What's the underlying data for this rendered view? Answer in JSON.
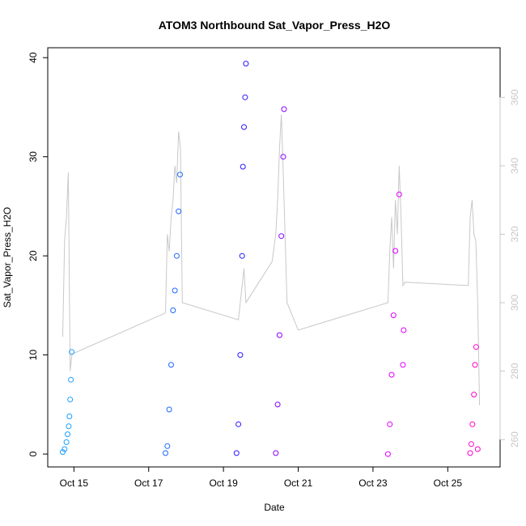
{
  "chart_data": {
    "type": "scatter",
    "title": "ATOM3 Northbound Sat_Vapor_Press_H2O",
    "xlabel": "Date",
    "ylabel": "Sat_Vapor_Press_H2O",
    "x_tick_labels": [
      "Oct 15",
      "Oct 17",
      "Oct 19",
      "Oct 21",
      "Oct 23",
      "Oct 25"
    ],
    "x_tick_values": [
      15,
      17,
      19,
      21,
      23,
      25
    ],
    "xlim": [
      14.3,
      26.4
    ],
    "ylim": [
      -1.3,
      41.0
    ],
    "y_ticks": [
      0,
      10,
      20,
      30,
      40
    ],
    "secondary_axis": {
      "side": "right",
      "ylim": [
        252.0,
        374.5
      ],
      "ticks": [
        260,
        280,
        300,
        320,
        340,
        360
      ],
      "color": "#c8c8c8"
    },
    "series": [
      {
        "color": "#1a9fff",
        "x": [
          14.7,
          14.75,
          14.8,
          14.83,
          14.86,
          14.88,
          14.9,
          14.92,
          14.94
        ],
        "y": [
          0.2,
          0.5,
          1.2,
          2.0,
          2.8,
          3.8,
          5.5,
          7.5,
          10.3
        ]
      },
      {
        "color": "#1a66ff",
        "x": [
          17.45,
          17.5,
          17.55,
          17.6,
          17.65,
          17.7,
          17.75,
          17.8,
          17.84
        ],
        "y": [
          0.1,
          0.8,
          4.5,
          9.0,
          14.5,
          16.5,
          20.0,
          24.5,
          28.2
        ]
      },
      {
        "color": "#2a18ff",
        "x": [
          19.35,
          19.4,
          19.45,
          19.5,
          19.52,
          19.55,
          19.58,
          19.6
        ],
        "y": [
          0.1,
          3.0,
          10.0,
          20.0,
          29.0,
          33.0,
          36.0,
          39.4
        ]
      },
      {
        "color": "#8a00ff",
        "x": [
          20.4,
          20.45,
          20.5,
          20.55,
          20.6,
          20.62
        ],
        "y": [
          0.1,
          5.0,
          12.0,
          22.0,
          30.0,
          34.8
        ]
      },
      {
        "color": "#e000ff",
        "x": [
          23.4,
          23.45,
          23.5,
          23.55,
          23.6,
          23.7,
          23.8,
          23.82
        ],
        "y": [
          0.0,
          3.0,
          8.0,
          14.0,
          20.5,
          26.2,
          9.0,
          12.5
        ]
      },
      {
        "color": "#ff00c8",
        "x": [
          25.6,
          25.63,
          25.66,
          25.7,
          25.73,
          25.76,
          25.8
        ],
        "y": [
          0.1,
          1.0,
          3.0,
          6.0,
          9.0,
          10.8,
          0.5
        ]
      }
    ],
    "secondary_line": {
      "color": "#c8c8c8",
      "x": [
        14.7,
        14.75,
        14.8,
        14.85,
        14.9,
        14.95,
        17.45,
        17.5,
        17.55,
        17.6,
        17.65,
        17.7,
        17.75,
        17.8,
        17.85,
        17.9,
        19.4,
        19.5,
        19.55,
        19.6,
        20.3,
        20.4,
        20.45,
        20.5,
        20.55,
        20.6,
        20.7,
        21.0,
        23.4,
        23.45,
        23.5,
        23.55,
        23.6,
        23.65,
        23.7,
        23.75,
        23.8,
        23.85,
        25.55,
        25.6,
        25.65,
        25.7,
        25.75,
        25.8,
        25.85
      ],
      "y": [
        290,
        318,
        325,
        338,
        280,
        285,
        297,
        320,
        315,
        325,
        330,
        340,
        335,
        350,
        345,
        300,
        295,
        305,
        310,
        300,
        312,
        320,
        330,
        345,
        355,
        338,
        300,
        292,
        300,
        315,
        325,
        310,
        330,
        320,
        340,
        325,
        305,
        306,
        305,
        325,
        330,
        320,
        318,
        300,
        270
      ]
    }
  }
}
